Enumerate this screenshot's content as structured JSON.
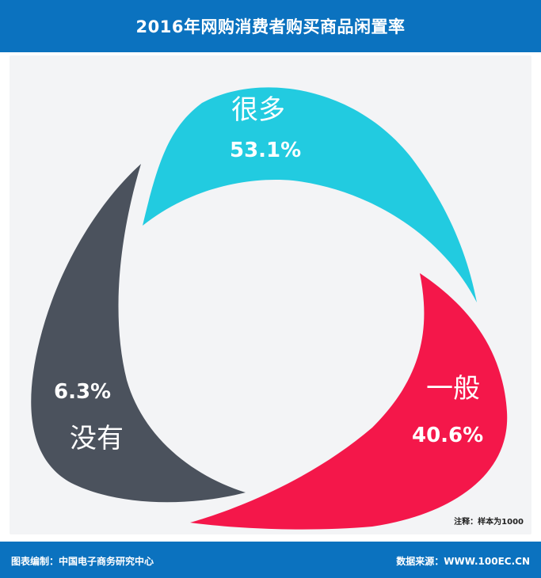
{
  "header": {
    "title": "2016年网购消费者购买商品闲置率"
  },
  "footer": {
    "credit": "图表编制：中国电子商务研究中心",
    "source": "数据来源：WWW.100EC.CN",
    "note": "注释：样本为1000"
  },
  "colors": {
    "header_bg": "#0b72bf",
    "many": "#22cbe0",
    "general": "#f4174a",
    "none": "#4b525d",
    "label": "#ffffff"
  },
  "chart_data": {
    "type": "pie",
    "title": "2016年网购消费者购买商品闲置率",
    "unit": "%",
    "slices": [
      {
        "name": "很多",
        "value": 53.1,
        "label": "53.1%",
        "color": "#22cbe0"
      },
      {
        "name": "一般",
        "value": 40.6,
        "label": "40.6%",
        "color": "#f4174a"
      },
      {
        "name": "没有",
        "value": 6.3,
        "label": "6.3%",
        "color": "#4b525d"
      }
    ]
  }
}
